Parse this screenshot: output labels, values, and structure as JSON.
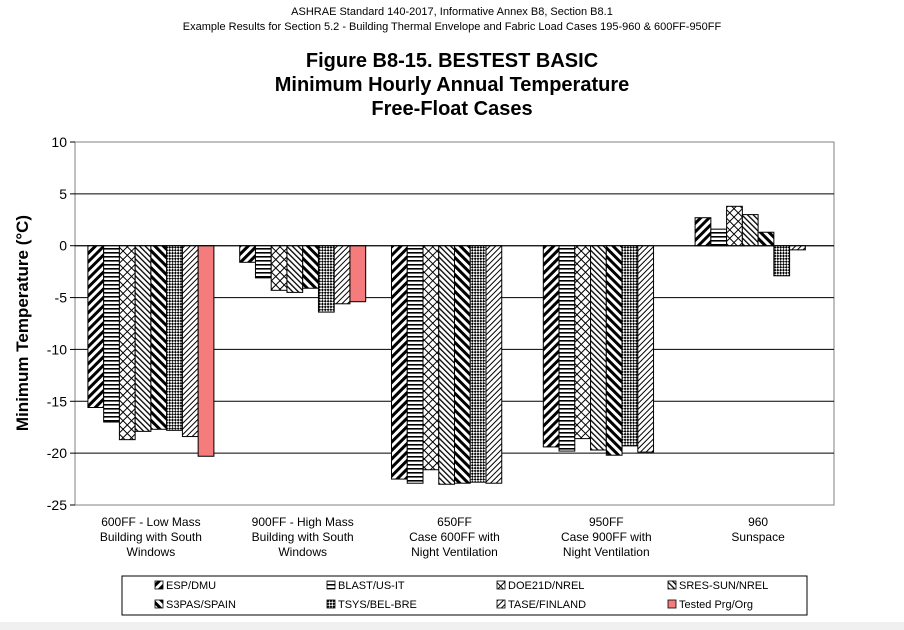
{
  "header": {
    "line1": "ASHRAE Standard 140-2017, Informative Annex B8, Section B8.1",
    "line2": "Example Results for Section 5.2 - Building Thermal Envelope and Fabric Load Cases 195-960 & 600FF-950FF"
  },
  "chart_data": {
    "type": "bar",
    "title": [
      "Figure B8-15.  BESTEST BASIC",
      "Minimum Hourly Annual Temperature",
      "Free-Float Cases"
    ],
    "ylabel": "Minimum Temperature (°C)",
    "xlabel": "",
    "ylim": [
      -25,
      10
    ],
    "yticks": [
      10,
      5,
      0,
      -5,
      -10,
      -15,
      -20,
      -25
    ],
    "grid": true,
    "legend_position": "bottom",
    "categories": [
      [
        "600FF - Low Mass",
        "Building with South",
        "Windows"
      ],
      [
        "900FF - High Mass",
        "Building with South",
        "Windows"
      ],
      [
        "650FF",
        "Case 600FF with",
        "Night Ventilation"
      ],
      [
        "950FF",
        "Case 900FF with",
        "Night Ventilation"
      ],
      [
        "960",
        "Sunspace"
      ]
    ],
    "series": [
      {
        "name": "ESP/DMU",
        "pattern": "diag-fwd",
        "values": [
          -15.6,
          -1.6,
          -22.5,
          -19.4,
          2.7
        ]
      },
      {
        "name": "BLAST/US-IT",
        "pattern": "horiz",
        "values": [
          -17.0,
          -3.1,
          -22.9,
          -19.8,
          1.6
        ]
      },
      {
        "name": "DOE21D/NREL",
        "pattern": "cross-diag",
        "values": [
          -18.7,
          -4.3,
          -21.6,
          -18.6,
          3.8
        ]
      },
      {
        "name": "SRES-SUN/NREL",
        "pattern": "diag-back-thin",
        "values": [
          -17.9,
          -4.5,
          -23.0,
          -19.7,
          3.0
        ]
      },
      {
        "name": "S3PAS/SPAIN",
        "pattern": "diag-back",
        "values": [
          -17.7,
          -4.1,
          -22.9,
          -20.2,
          1.3
        ]
      },
      {
        "name": "TSYS/BEL-BRE",
        "pattern": "checker",
        "values": [
          -17.8,
          -6.4,
          -22.8,
          -19.3,
          -2.9
        ]
      },
      {
        "name": "TASE/FINLAND",
        "pattern": "diag-fwd-thin",
        "values": [
          -18.4,
          -5.6,
          -22.9,
          -19.9,
          -0.4
        ]
      },
      {
        "name": "Tested Prg/Org",
        "pattern": "solid",
        "color": "#f47c7c",
        "values": [
          -20.3,
          -5.4,
          null,
          null,
          null
        ]
      }
    ]
  }
}
